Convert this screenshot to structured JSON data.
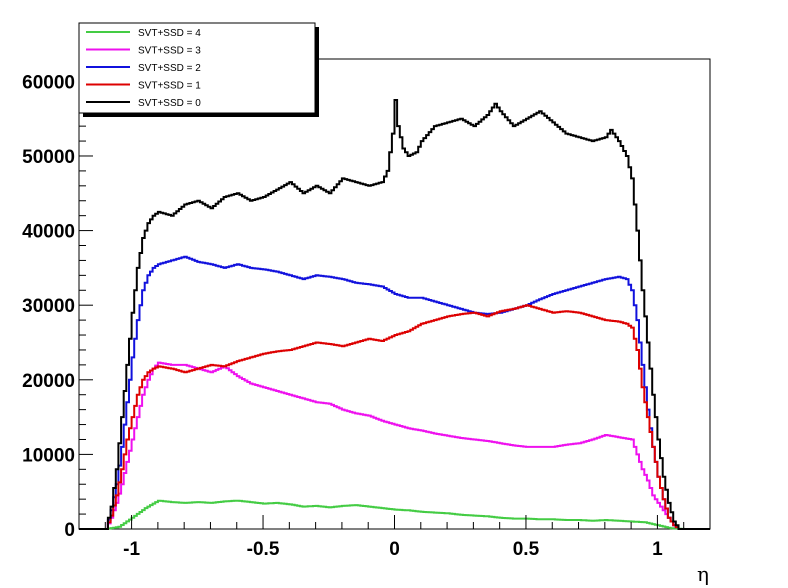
{
  "chart_data": {
    "type": "line",
    "title": "",
    "xlabel": "η",
    "ylabel": "",
    "xlim": [
      -1.2,
      1.2
    ],
    "ylim": [
      0,
      63000
    ],
    "x_ticks": [
      -1,
      -0.5,
      0,
      0.5,
      1
    ],
    "x_tick_labels": [
      "-1",
      "-0.5",
      "0",
      "0.5",
      "1"
    ],
    "y_ticks": [
      0,
      10000,
      20000,
      30000,
      40000,
      50000,
      60000
    ],
    "y_tick_labels": [
      "0",
      "10000",
      "20000",
      "30000",
      "40000",
      "50000",
      "60000"
    ],
    "grid": false,
    "legend_position": "top-left",
    "series": [
      {
        "name": "SVT+SSD = 4",
        "color": "#44cc44",
        "x": [
          -1.1,
          -1.05,
          -1.0,
          -0.95,
          -0.9,
          -0.85,
          -0.8,
          -0.75,
          -0.7,
          -0.65,
          -0.6,
          -0.55,
          -0.5,
          -0.45,
          -0.4,
          -0.35,
          -0.3,
          -0.25,
          -0.2,
          -0.15,
          -0.1,
          -0.05,
          0.0,
          0.05,
          0.1,
          0.15,
          0.2,
          0.25,
          0.3,
          0.35,
          0.4,
          0.45,
          0.5,
          0.55,
          0.6,
          0.65,
          0.7,
          0.75,
          0.8,
          0.85,
          0.9,
          0.95,
          1.0,
          1.05,
          1.1
        ],
        "values": [
          0,
          300,
          1500,
          2800,
          3800,
          3600,
          3500,
          3600,
          3500,
          3700,
          3800,
          3600,
          3400,
          3500,
          3300,
          3000,
          3100,
          2900,
          3100,
          3200,
          3000,
          2800,
          2600,
          2500,
          2300,
          2200,
          2100,
          1900,
          1800,
          1700,
          1500,
          1400,
          1400,
          1300,
          1300,
          1200,
          1200,
          1100,
          1200,
          1100,
          1000,
          900,
          500,
          100,
          0
        ]
      },
      {
        "name": "SVT+SSD = 3",
        "color": "#ee11ee",
        "x": [
          -1.1,
          -1.08,
          -1.06,
          -1.04,
          -1.02,
          -1.0,
          -0.98,
          -0.96,
          -0.94,
          -0.92,
          -0.9,
          -0.85,
          -0.8,
          -0.75,
          -0.7,
          -0.65,
          -0.6,
          -0.55,
          -0.5,
          -0.45,
          -0.4,
          -0.35,
          -0.3,
          -0.25,
          -0.2,
          -0.15,
          -0.1,
          -0.05,
          0.0,
          0.05,
          0.1,
          0.15,
          0.2,
          0.25,
          0.3,
          0.35,
          0.4,
          0.45,
          0.5,
          0.55,
          0.6,
          0.65,
          0.7,
          0.75,
          0.8,
          0.85,
          0.9,
          0.92,
          0.94,
          0.96,
          0.98,
          1.0,
          1.02,
          1.04,
          1.06,
          1.08
        ],
        "values": [
          0,
          1500,
          3500,
          6000,
          9000,
          12000,
          15000,
          18000,
          20000,
          21500,
          22300,
          22000,
          22000,
          21500,
          21000,
          21800,
          20500,
          19500,
          19000,
          18500,
          18000,
          17500,
          17000,
          16800,
          16000,
          15500,
          15200,
          14500,
          14000,
          13500,
          13200,
          12800,
          12500,
          12200,
          12000,
          11800,
          11500,
          11200,
          11000,
          11000,
          11000,
          11300,
          11500,
          12000,
          12600,
          12300,
          12000,
          10000,
          8000,
          6500,
          4500,
          3500,
          2500,
          1500,
          500,
          0
        ]
      },
      {
        "name": "SVT+SSD = 2",
        "color": "#1111dd",
        "x": [
          -1.1,
          -1.08,
          -1.06,
          -1.04,
          -1.02,
          -1.0,
          -0.98,
          -0.96,
          -0.94,
          -0.92,
          -0.9,
          -0.85,
          -0.8,
          -0.75,
          -0.7,
          -0.65,
          -0.6,
          -0.55,
          -0.5,
          -0.45,
          -0.4,
          -0.35,
          -0.3,
          -0.25,
          -0.2,
          -0.15,
          -0.1,
          -0.05,
          0.0,
          0.05,
          0.1,
          0.15,
          0.2,
          0.25,
          0.3,
          0.35,
          0.4,
          0.45,
          0.5,
          0.55,
          0.6,
          0.65,
          0.7,
          0.75,
          0.8,
          0.85,
          0.88,
          0.9,
          0.92,
          0.94,
          0.96,
          0.98,
          1.0,
          1.02,
          1.04,
          1.06,
          1.08
        ],
        "values": [
          0,
          2500,
          6000,
          11000,
          17000,
          23000,
          28000,
          32000,
          34000,
          35000,
          35500,
          36000,
          36500,
          35800,
          35500,
          35000,
          35500,
          35000,
          34800,
          34500,
          34000,
          33500,
          34000,
          33800,
          33500,
          33000,
          32800,
          32500,
          31500,
          31000,
          31000,
          30500,
          30000,
          29500,
          29000,
          28800,
          29000,
          29500,
          30000,
          30800,
          31500,
          32000,
          32500,
          33000,
          33500,
          33800,
          33500,
          32000,
          28000,
          22000,
          16000,
          11000,
          7000,
          4000,
          1500,
          500,
          0
        ]
      },
      {
        "name": "SVT+SSD = 1",
        "color": "#dd0000",
        "x": [
          -1.1,
          -1.08,
          -1.06,
          -1.04,
          -1.02,
          -1.0,
          -0.98,
          -0.96,
          -0.94,
          -0.92,
          -0.9,
          -0.85,
          -0.8,
          -0.75,
          -0.7,
          -0.65,
          -0.6,
          -0.55,
          -0.5,
          -0.45,
          -0.4,
          -0.35,
          -0.3,
          -0.25,
          -0.2,
          -0.15,
          -0.1,
          -0.05,
          0.0,
          0.05,
          0.1,
          0.15,
          0.2,
          0.25,
          0.3,
          0.35,
          0.4,
          0.45,
          0.5,
          0.55,
          0.6,
          0.65,
          0.7,
          0.75,
          0.8,
          0.85,
          0.88,
          0.9,
          0.92,
          0.94,
          0.96,
          0.98,
          1.0,
          1.02,
          1.04,
          1.06,
          1.08
        ],
        "values": [
          0,
          1800,
          4500,
          8000,
          12000,
          15000,
          18000,
          20000,
          21000,
          21500,
          21800,
          21500,
          21000,
          21500,
          22000,
          21800,
          22500,
          23000,
          23500,
          23800,
          24000,
          24500,
          25000,
          24800,
          24500,
          25000,
          25500,
          25200,
          26000,
          26500,
          27500,
          28000,
          28500,
          28800,
          29000,
          28500,
          29200,
          29500,
          30000,
          29500,
          29000,
          29200,
          29000,
          28500,
          28000,
          27800,
          27500,
          27000,
          24000,
          19000,
          15000,
          11000,
          7000,
          4000,
          1500,
          500,
          0
        ]
      },
      {
        "name": "SVT+SSD = 0",
        "color": "#000000",
        "x": [
          -1.1,
          -1.08,
          -1.06,
          -1.04,
          -1.02,
          -1.0,
          -0.98,
          -0.96,
          -0.94,
          -0.92,
          -0.9,
          -0.85,
          -0.8,
          -0.75,
          -0.7,
          -0.65,
          -0.6,
          -0.55,
          -0.5,
          -0.45,
          -0.4,
          -0.35,
          -0.3,
          -0.25,
          -0.2,
          -0.15,
          -0.1,
          -0.05,
          -0.03,
          -0.01,
          0.0,
          0.01,
          0.03,
          0.05,
          0.08,
          0.1,
          0.15,
          0.2,
          0.25,
          0.3,
          0.35,
          0.38,
          0.4,
          0.45,
          0.5,
          0.55,
          0.6,
          0.65,
          0.7,
          0.75,
          0.8,
          0.82,
          0.85,
          0.88,
          0.9,
          0.92,
          0.94,
          0.96,
          0.98,
          1.0,
          1.02,
          1.04,
          1.06,
          1.08
        ],
        "values": [
          0,
          3000,
          8000,
          15000,
          22000,
          29000,
          35000,
          39000,
          41000,
          42000,
          42500,
          42000,
          43500,
          44000,
          43000,
          44500,
          45000,
          44000,
          44500,
          45500,
          46500,
          45000,
          46000,
          45000,
          47000,
          46500,
          46000,
          46500,
          48000,
          53000,
          57500,
          54000,
          51000,
          50000,
          50500,
          52000,
          54000,
          54500,
          55000,
          54000,
          55500,
          57000,
          56000,
          54000,
          55000,
          56000,
          54500,
          53000,
          52500,
          52000,
          52500,
          53500,
          52000,
          50000,
          47000,
          40000,
          32000,
          25000,
          18000,
          12000,
          7000,
          3500,
          1000,
          0
        ]
      }
    ]
  }
}
